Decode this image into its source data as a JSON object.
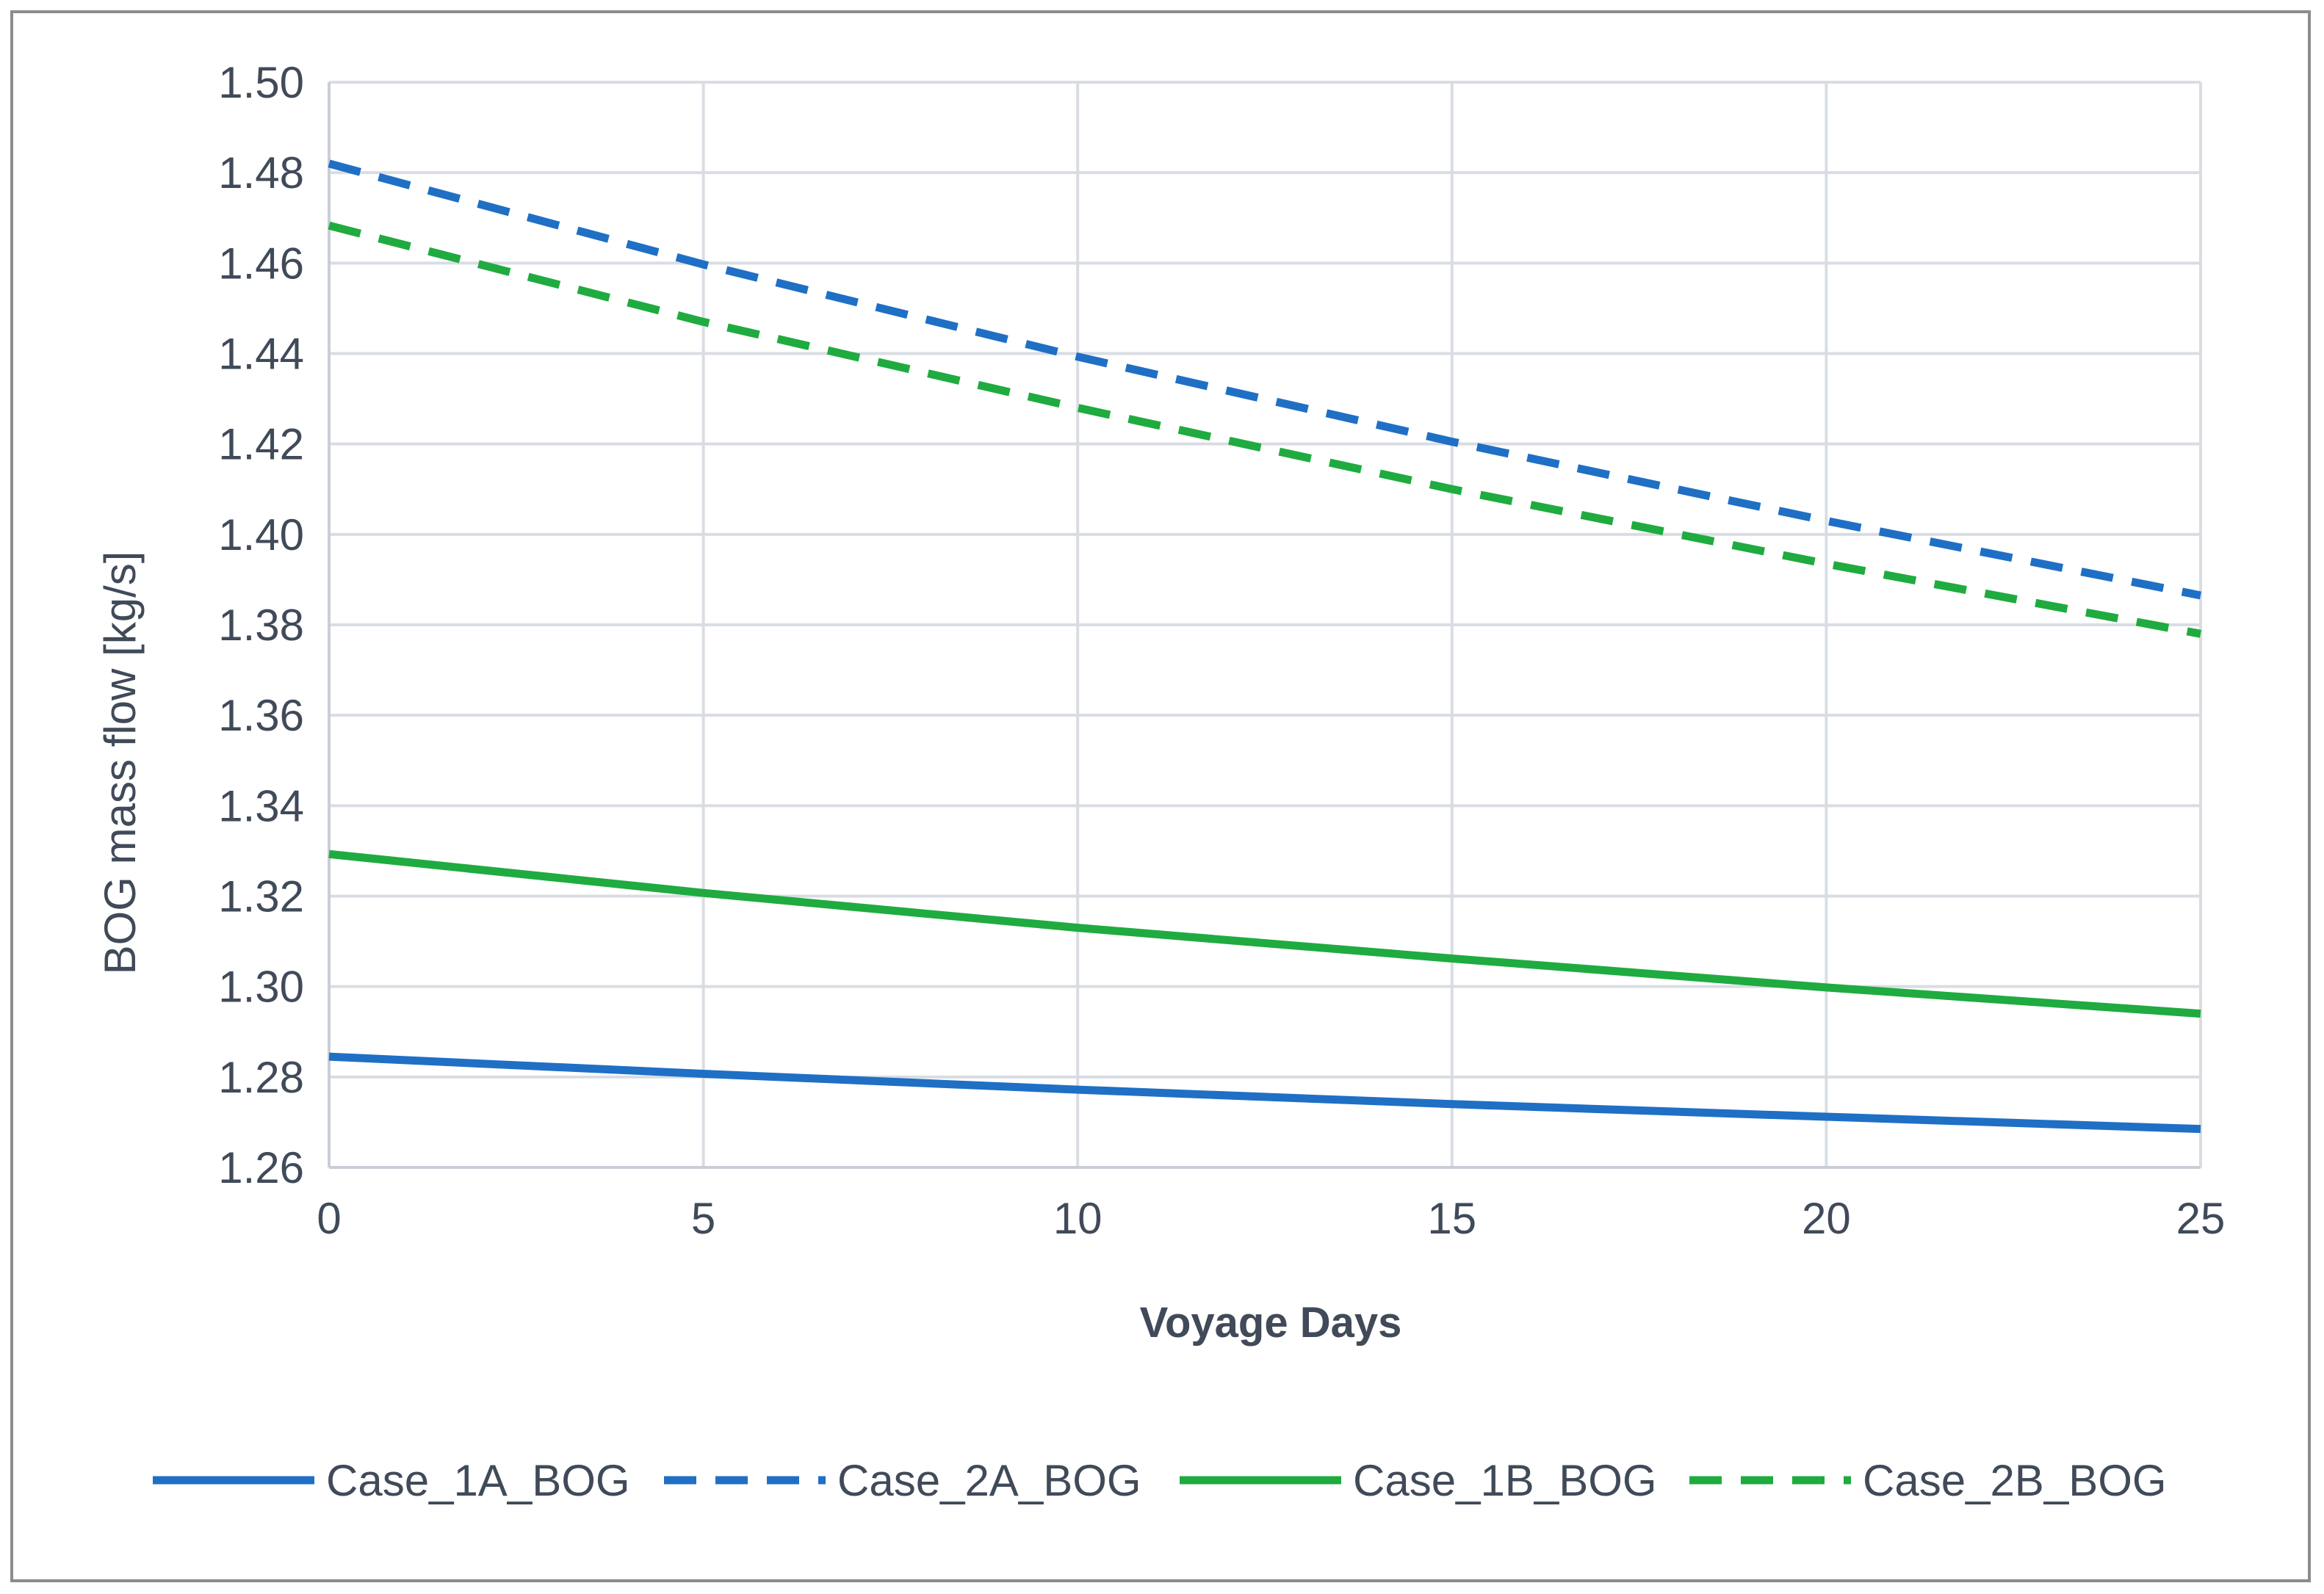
{
  "chart_data": {
    "type": "line",
    "title": "",
    "xlabel": "Voyage Days",
    "ylabel": "BOG mass flow [kg/s]",
    "xlim": [
      0,
      25
    ],
    "ylim": [
      1.26,
      1.5
    ],
    "xticks": [
      "0",
      "5",
      "10",
      "15",
      "20",
      "25"
    ],
    "yticks": [
      "1.26",
      "1.28",
      "1.30",
      "1.32",
      "1.34",
      "1.36",
      "1.38",
      "1.40",
      "1.42",
      "1.44",
      "1.46",
      "1.48",
      "1.50"
    ],
    "grid": true,
    "legend_position": "bottom",
    "x": [
      0,
      5,
      10,
      15,
      20,
      25
    ],
    "series": [
      {
        "name": "Case_1A_BOG",
        "color": "#1f6fc5",
        "style": "solid",
        "values": [
          1.2845,
          1.2807,
          1.2772,
          1.274,
          1.2712,
          1.2685
        ]
      },
      {
        "name": "Case_2A_BOG",
        "color": "#1f6fc5",
        "style": "dashed",
        "values": [
          1.482,
          1.4597,
          1.4393,
          1.4205,
          1.403,
          1.3865
        ]
      },
      {
        "name": "Case_1B_BOG",
        "color": "#1fab3f",
        "style": "solid",
        "values": [
          1.3293,
          1.3207,
          1.313,
          1.3062,
          1.2998,
          1.294
        ]
      },
      {
        "name": "Case_2B_BOG",
        "color": "#1fab3f",
        "style": "dashed",
        "values": [
          1.4683,
          1.447,
          1.428,
          1.41,
          1.3935,
          1.378
        ]
      }
    ]
  }
}
